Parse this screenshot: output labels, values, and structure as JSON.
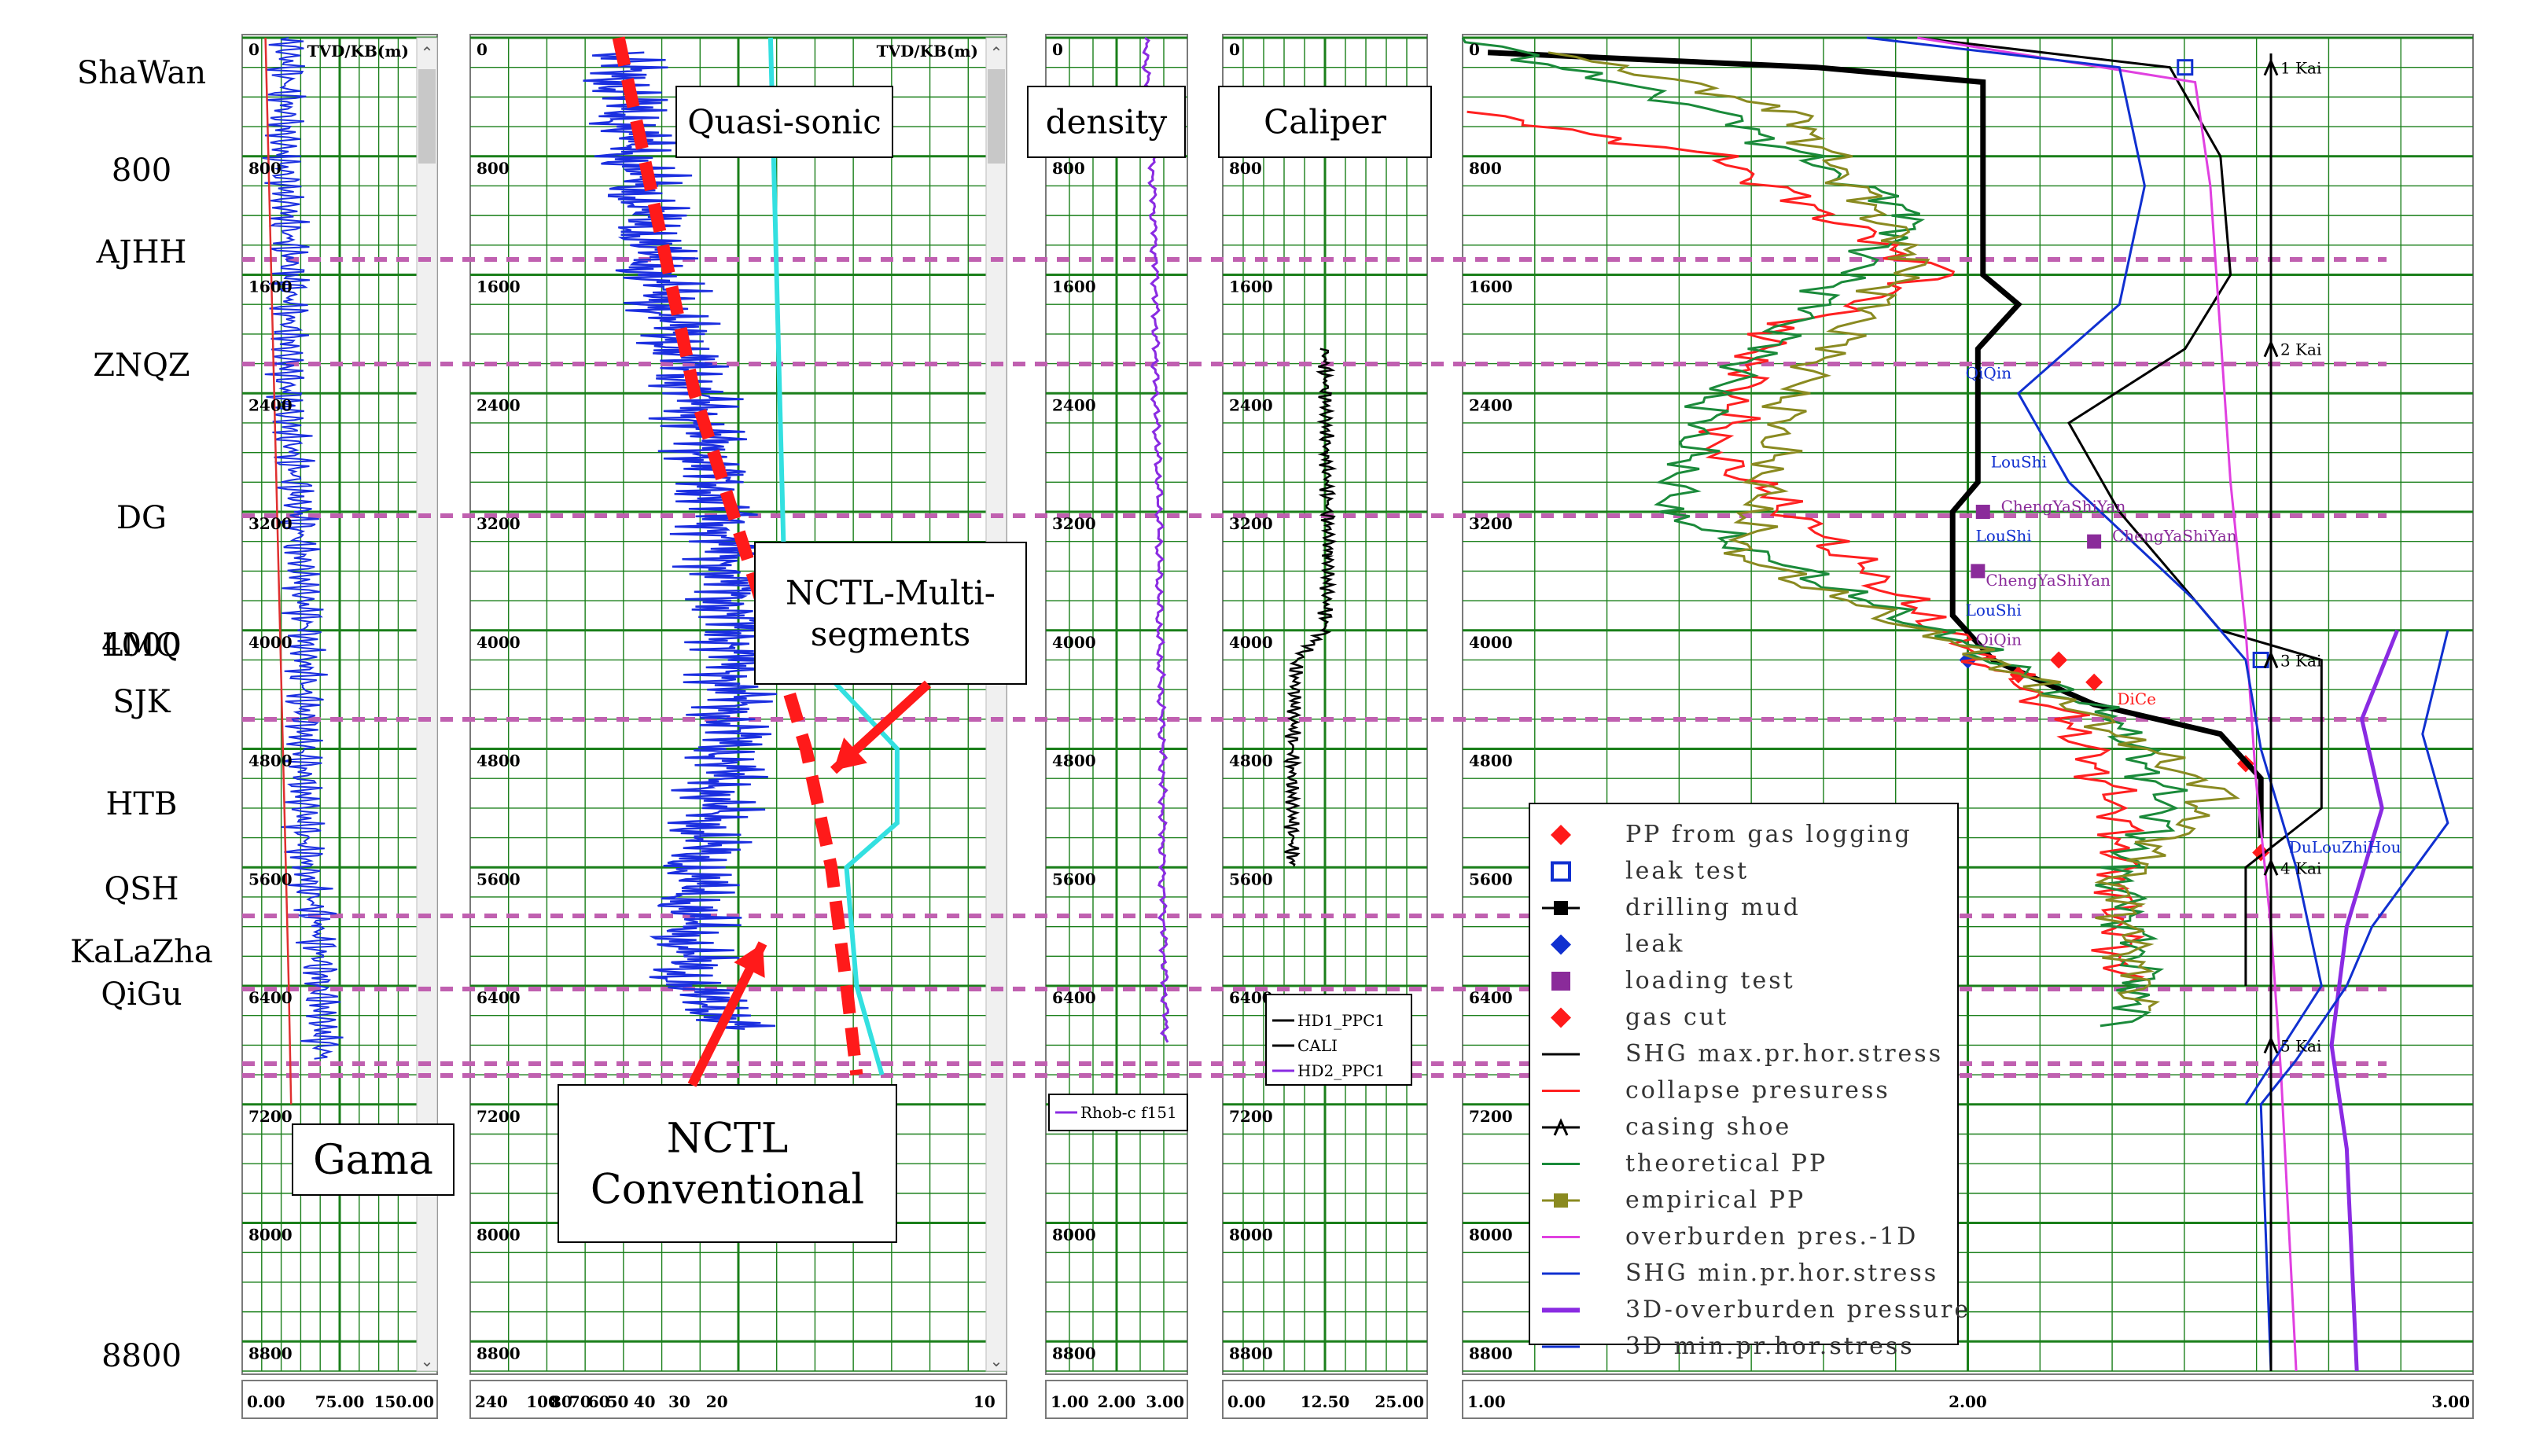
{
  "formations": [
    {
      "name": "ShaWan"
    },
    {
      "name": "AJHH"
    },
    {
      "name": "ZNQZ"
    },
    {
      "name": "DG"
    },
    {
      "name": "LMQ"
    },
    {
      "name": "SJK"
    },
    {
      "name": "HTB"
    },
    {
      "name": "QSH"
    },
    {
      "name": "KaLaZha"
    },
    {
      "name": "QiGu"
    }
  ],
  "depth_markers": [
    "800",
    "4000",
    "8800"
  ],
  "track_header": "TVD/KB(m)",
  "depth_ticks": [
    "0",
    "800",
    "1600",
    "2400",
    "3200",
    "4000",
    "4800",
    "5600",
    "6400",
    "7200",
    "8000",
    "8800"
  ],
  "callouts": {
    "gama": "Gama",
    "quasi_sonic": "Quasi-sonic",
    "density": "density",
    "caliper": "Caliper",
    "nctl_multi_1": "NCTL-Multi-",
    "nctl_multi_2": "segments",
    "nctl_conv_1": "NCTL",
    "nctl_conv_2": "Conventional"
  },
  "track_legends": {
    "density": "Rhob-c f151",
    "caliper": [
      "HD1_PPC1",
      "CALI",
      "HD2_PPC1"
    ]
  },
  "colors": {
    "grid": "#1a7f1a",
    "formation_line": "#c060b0",
    "gamma": "#1b2fe0",
    "sonic": "#1b2fe0",
    "nctl_multi": "#33e0e0",
    "nctl_conv": "#ff1a1a",
    "density": "#8a2be2",
    "caliper": "#000000",
    "overburden_1d": "#e040e0",
    "overburden_3d": "#8a2be2",
    "shg_max": "#000000",
    "shg_min": "#1030d0",
    "collapse": "#ff2020",
    "theoretical_pp": "#1a8a3a",
    "empirical_pp": "#8a8a20",
    "drilling_mud": "#000000"
  },
  "chart_data": [
    {
      "type": "line",
      "track": "gamma",
      "ylabel": "TVD/KB(m)",
      "ylim": [
        0,
        9000
      ],
      "xlim": [
        0,
        150
      ],
      "x_ticks": [
        "0.00",
        "75.00",
        "150.00"
      ],
      "series": [
        {
          "name": "",
          "values": [
            [
              40,
              0
            ],
            [
              35,
              800
            ],
            [
              42,
              1600
            ],
            [
              38,
              2400
            ],
            [
              48,
              3200
            ],
            [
              55,
              4000
            ],
            [
              52,
              4800
            ],
            [
              55,
              5600
            ],
            [
              65,
              6000
            ],
            [
              68,
              6400
            ],
            [
              70,
              6900
            ]
          ]
        },
        {
          "name": "",
          "values": [
            [
              20,
              0
            ],
            [
              25,
              1600
            ],
            [
              30,
              3200
            ],
            [
              35,
              4800
            ],
            [
              40,
              6400
            ],
            [
              42,
              7200
            ]
          ]
        }
      ]
    },
    {
      "type": "line",
      "track": "sonic",
      "ylabel": "TVD/KB(m)",
      "ylim": [
        0,
        9000
      ],
      "x_ticks": [
        "240",
        "100",
        "80",
        "70",
        "60",
        "50",
        "40",
        "30",
        "20",
        "10"
      ],
      "series": [
        {
          "name": "Quasi-sonic",
          "values": [
            [
              85,
              100
            ],
            [
              82,
              800
            ],
            [
              78,
              1600
            ],
            [
              70,
              2400
            ],
            [
              65,
              3200
            ],
            [
              62,
              4000
            ],
            [
              63,
              4800
            ],
            [
              70,
              5600
            ],
            [
              72,
              6400
            ],
            [
              60,
              6700
            ]
          ]
        },
        {
          "name": "NCTL-Multi-segments",
          "values": [
            [
              55,
              0
            ],
            [
              52,
              4000
            ],
            [
              30,
              4800
            ],
            [
              30,
              5300
            ],
            [
              40,
              5600
            ],
            [
              38,
              6400
            ],
            [
              33,
              7000
            ]
          ]
        },
        {
          "name": "NCTL Conventional",
          "values": [
            [
              85,
              0
            ],
            [
              70,
              2400
            ],
            [
              55,
              4000
            ],
            [
              48,
              4800
            ],
            [
              43,
              5600
            ],
            [
              40,
              6400
            ],
            [
              38,
              7000
            ]
          ]
        }
      ]
    },
    {
      "type": "line",
      "track": "density",
      "ylabel": "TVD/KB(m)",
      "ylim": [
        0,
        9000
      ],
      "xlim": [
        1,
        3
      ],
      "x_ticks": [
        "1.00",
        "2.00",
        "3.00"
      ],
      "series": [
        {
          "name": "Rhob-c f151",
          "values": [
            [
              2.4,
              0
            ],
            [
              2.5,
              800
            ],
            [
              2.55,
              1600
            ],
            [
              2.55,
              2400
            ],
            [
              2.6,
              3200
            ],
            [
              2.6,
              4000
            ],
            [
              2.65,
              4800
            ],
            [
              2.65,
              5600
            ],
            [
              2.68,
              6400
            ],
            [
              2.7,
              6800
            ]
          ]
        }
      ]
    },
    {
      "type": "line",
      "track": "caliper",
      "ylabel": "TVD/KB(m)",
      "ylim": [
        0,
        9000
      ],
      "xlim": [
        0,
        25
      ],
      "x_ticks": [
        "0.00",
        "12.50",
        "25.00"
      ],
      "series": [
        {
          "name": "CALI",
          "values": [
            [
              12.5,
              2100
            ],
            [
              12.7,
              2800
            ],
            [
              13,
              3500
            ],
            [
              12.5,
              4000
            ],
            [
              9,
              4200
            ],
            [
              8.5,
              4800
            ],
            [
              8.5,
              5600
            ]
          ]
        }
      ]
    },
    {
      "type": "line",
      "track": "pressure",
      "ylabel": "TVD/KB(m)",
      "ylim": [
        0,
        9000
      ],
      "xlim": [
        1,
        3
      ],
      "x_ticks": [
        "1.00",
        "2.00",
        "3.00"
      ],
      "series": [
        {
          "name": "PP from gas logging",
          "values": [
            [
              2.18,
              4200
            ],
            [
              2.25,
              4350
            ],
            [
              2.55,
              4900
            ],
            [
              2.58,
              5500
            ]
          ]
        },
        {
          "name": "leak test",
          "values": [
            [
              2.43,
              200
            ],
            [
              2.58,
              4200
            ]
          ]
        },
        {
          "name": "drilling mud",
          "values": [
            [
              1.05,
              100
            ],
            [
              1.7,
              200
            ],
            [
              2.03,
              300
            ],
            [
              2.03,
              1600
            ],
            [
              2.1,
              1800
            ],
            [
              2.02,
              2100
            ],
            [
              2.02,
              3000
            ],
            [
              1.97,
              3200
            ],
            [
              1.97,
              3900
            ],
            [
              2.05,
              4200
            ],
            [
              2.25,
              4500
            ],
            [
              2.5,
              4700
            ],
            [
              2.58,
              5000
            ],
            [
              2.58,
              5400
            ]
          ]
        },
        {
          "name": "leak",
          "values": [
            [
              2.0,
              4200
            ]
          ]
        },
        {
          "name": "loading test",
          "values": [
            [
              2.03,
              3200
            ],
            [
              2.25,
              3400
            ],
            [
              2.02,
              3600
            ]
          ]
        },
        {
          "name": "gas cut",
          "values": [
            [
              2.1,
              4300
            ]
          ]
        },
        {
          "name": "SHG max.pr.hor.stress",
          "values": [
            [
              1.9,
              0
            ],
            [
              2.4,
              200
            ],
            [
              2.5,
              800
            ],
            [
              2.52,
              1600
            ],
            [
              2.43,
              2100
            ],
            [
              2.2,
              2600
            ],
            [
              2.3,
              3200
            ],
            [
              2.5,
              4000
            ],
            [
              2.7,
              4200
            ],
            [
              2.7,
              5200
            ],
            [
              2.55,
              5600
            ],
            [
              2.55,
              6400
            ]
          ]
        },
        {
          "name": "collapse presuress",
          "values": [
            [
              1.0,
              500
            ],
            [
              1.5,
              800
            ],
            [
              1.95,
              1600
            ],
            [
              1.6,
              2000
            ],
            [
              1.5,
              2800
            ],
            [
              1.95,
              4000
            ],
            [
              2.2,
              4600
            ],
            [
              2.3,
              5200
            ],
            [
              2.3,
              6400
            ]
          ]
        },
        {
          "name": "casing shoe",
          "values": [
            [
              2.6,
              200
            ],
            [
              2.6,
              2100
            ],
            [
              2.6,
              4200
            ],
            [
              2.6,
              5600
            ],
            [
              2.6,
              6600
            ]
          ]
        },
        {
          "name": "theoretical PP",
          "values": [
            [
              1.0,
              0
            ],
            [
              1.5,
              500
            ],
            [
              1.9,
              1200
            ],
            [
              1.5,
              2400
            ],
            [
              1.4,
              3200
            ],
            [
              2.0,
              4100
            ],
            [
              2.3,
              4600
            ],
            [
              2.4,
              5200
            ],
            [
              2.3,
              5600
            ],
            [
              2.35,
              6400
            ],
            [
              2.3,
              6700
            ]
          ]
        },
        {
          "name": "empirical PP",
          "values": [
            [
              1.2,
              100
            ],
            [
              1.65,
              500
            ],
            [
              1.9,
              1500
            ],
            [
              1.65,
              2400
            ],
            [
              1.55,
              3500
            ],
            [
              2.05,
              4200
            ],
            [
              2.35,
              4800
            ],
            [
              2.5,
              5100
            ],
            [
              2.3,
              5700
            ],
            [
              2.35,
              6600
            ]
          ]
        },
        {
          "name": "overburden pres.-1D",
          "values": [
            [
              1.9,
              0
            ],
            [
              2.45,
              300
            ],
            [
              2.48,
              1000
            ],
            [
              2.5,
              2000
            ],
            [
              2.52,
              3000
            ],
            [
              2.55,
              4000
            ],
            [
              2.57,
              5000
            ],
            [
              2.6,
              6000
            ],
            [
              2.62,
              7000
            ],
            [
              2.65,
              9000
            ]
          ]
        },
        {
          "name": "SHG min.pr.hor.stress",
          "values": [
            [
              1.8,
              0
            ],
            [
              2.3,
              200
            ],
            [
              2.35,
              1000
            ],
            [
              2.3,
              1800
            ],
            [
              2.1,
              2400
            ],
            [
              2.2,
              3000
            ],
            [
              2.45,
              3800
            ],
            [
              2.55,
              4200
            ],
            [
              2.58,
              4800
            ],
            [
              2.65,
              5600
            ],
            [
              2.7,
              6400
            ],
            [
              2.55,
              7200
            ]
          ]
        },
        {
          "name": "3D-overburden pressure",
          "values": [
            [
              2.85,
              4000
            ],
            [
              2.78,
              4600
            ],
            [
              2.82,
              5200
            ],
            [
              2.75,
              6000
            ],
            [
              2.72,
              6800
            ],
            [
              2.75,
              7500
            ],
            [
              2.77,
              9000
            ]
          ]
        },
        {
          "name": "3D min.pr.hor.stress",
          "values": [
            [
              2.95,
              4000
            ],
            [
              2.9,
              4700
            ],
            [
              2.95,
              5300
            ],
            [
              2.8,
              6000
            ],
            [
              2.75,
              6400
            ],
            [
              2.65,
              6900
            ],
            [
              2.58,
              7200
            ],
            [
              2.6,
              9000
            ]
          ]
        }
      ],
      "annotations": [
        "1 Kai",
        "2 Kai",
        "3 Kai",
        "4 Kai",
        "5 Kai",
        "QiQin",
        "LouShi",
        "LouShi",
        "LouShi",
        "ChengYaShiYan",
        "ChengYaShiYan",
        "ChengYaShiYan",
        "QiQin",
        "DiCe",
        "DuLouZhiHou"
      ]
    }
  ],
  "pressure_legend": [
    {
      "label": "PP from gas logging",
      "sym": "diamond",
      "color": "#ff1a1a"
    },
    {
      "label": "leak test",
      "sym": "square-open",
      "color": "#1030d0"
    },
    {
      "label": "drilling mud",
      "sym": "line-square",
      "color": "#000000"
    },
    {
      "label": "leak",
      "sym": "diamond",
      "color": "#1030d0"
    },
    {
      "label": "loading test",
      "sym": "square",
      "color": "#8a2b9a"
    },
    {
      "label": "gas cut",
      "sym": "diamond",
      "color": "#ff1a1a"
    },
    {
      "label": "SHG max.pr.hor.stress",
      "sym": "line",
      "color": "#000000"
    },
    {
      "label": "collapse presuress",
      "sym": "line",
      "color": "#ff2020"
    },
    {
      "label": "casing shoe",
      "sym": "arrow",
      "color": "#000000"
    },
    {
      "label": "theoretical PP",
      "sym": "line",
      "color": "#1a8a3a"
    },
    {
      "label": "empirical PP",
      "sym": "line-square",
      "color": "#8a8a20"
    },
    {
      "label": "overburden pres.-1D",
      "sym": "line",
      "color": "#e040e0"
    },
    {
      "label": "SHG min.pr.hor.stress",
      "sym": "line",
      "color": "#1030d0"
    },
    {
      "label": "3D-overburden pressure",
      "sym": "line",
      "color": "#8a2be2"
    },
    {
      "label": "3D min.pr.hor.stress",
      "sym": "line",
      "color": "#1030d0"
    }
  ]
}
